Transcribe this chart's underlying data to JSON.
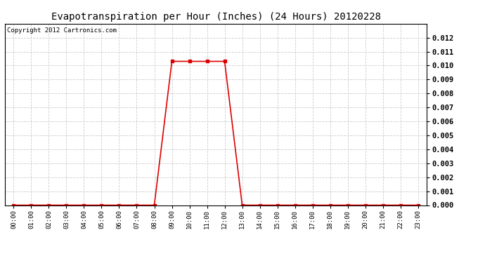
{
  "title": "Evapotranspiration per Hour (Inches) (24 Hours) 20120228",
  "copyright_text": "Copyright 2012 Cartronics.com",
  "hours": [
    "00:00",
    "01:00",
    "02:00",
    "03:00",
    "04:00",
    "05:00",
    "06:00",
    "07:00",
    "08:00",
    "09:00",
    "10:00",
    "11:00",
    "12:00",
    "13:00",
    "14:00",
    "15:00",
    "16:00",
    "17:00",
    "18:00",
    "19:00",
    "20:00",
    "21:00",
    "22:00",
    "23:00"
  ],
  "values": [
    0.0,
    0.0,
    0.0,
    0.0,
    0.0,
    0.0,
    0.0,
    0.0,
    0.0,
    0.0103,
    0.0103,
    0.0103,
    0.0103,
    0.0,
    0.0,
    0.0,
    0.0,
    0.0,
    0.0,
    0.0,
    0.0,
    0.0,
    0.0,
    0.0
  ],
  "line_color": "#dd0000",
  "marker": "s",
  "marker_size": 2.5,
  "ylim": [
    0.0,
    0.013
  ],
  "yticks": [
    0.0,
    0.001,
    0.002,
    0.003,
    0.004,
    0.005,
    0.006,
    0.007,
    0.008,
    0.009,
    0.01,
    0.011,
    0.012
  ],
  "background_color": "#ffffff",
  "plot_bg_color": "#ffffff",
  "grid_color": "#cccccc",
  "title_fontsize": 10,
  "tick_fontsize": 6.5,
  "ytick_fontsize": 7.5,
  "copyright_fontsize": 6.5
}
